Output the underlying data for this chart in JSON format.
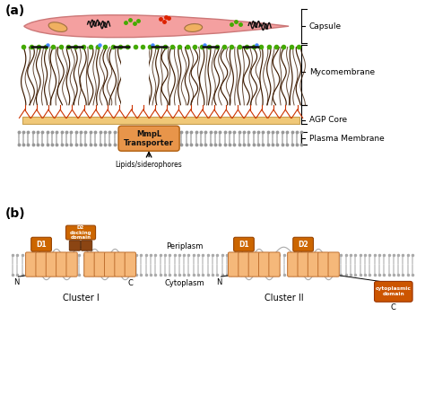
{
  "fig_width": 4.74,
  "fig_height": 4.4,
  "dpi": 100,
  "bg_color": "#ffffff",
  "colors": {
    "capsule_fill": "#f4a0a0",
    "capsule_edge": "#cc7777",
    "membrane_dark": "#3d1a00",
    "agp_fill": "#f0c878",
    "agp_edge": "#c8a050",
    "plasma_line": "#c8c8c8",
    "plasma_head": "#aaaaaa",
    "transporter_fill": "#e8954a",
    "transporter_edge": "#b06010",
    "red_branches": "#cc3300",
    "green_dot": "#44aa00",
    "blue_dot": "#4488ff",
    "red_dot": "#dd2200",
    "ellipse_fill": "#f0b060",
    "tmh_fill": "#f5b87a",
    "tmh_edge": "#c07030",
    "d1d2_fill": "#cc6600",
    "dark_brown": "#8B4513",
    "cytoplasmic_fill": "#cc5500",
    "black": "#000000",
    "gray_mem": "#d0d0d0"
  },
  "labels": {
    "panel_a": "(a)",
    "panel_b": "(b)",
    "capsule": "Capsule",
    "mycomembrane": "Mycomembrane",
    "agp_core": "AGP Core",
    "plasma_membrane": "Plasma Membrane",
    "transporter": "MmpL\nTransporter",
    "lipids": "Lipids/siderophores",
    "periplasm": "Periplasm",
    "cytoplasm": "Cytoplasm",
    "cluster1": "Cluster I",
    "cluster2": "Cluster II",
    "N1": "N",
    "C1": "C",
    "N2": "N",
    "C2": "C",
    "D1_1": "D1",
    "D1_2": "D1",
    "D2_2": "D2",
    "docking": "D2\ndocking\ndomain",
    "cytoplasmic_domain": "cytoplasmic\ndomain"
  }
}
